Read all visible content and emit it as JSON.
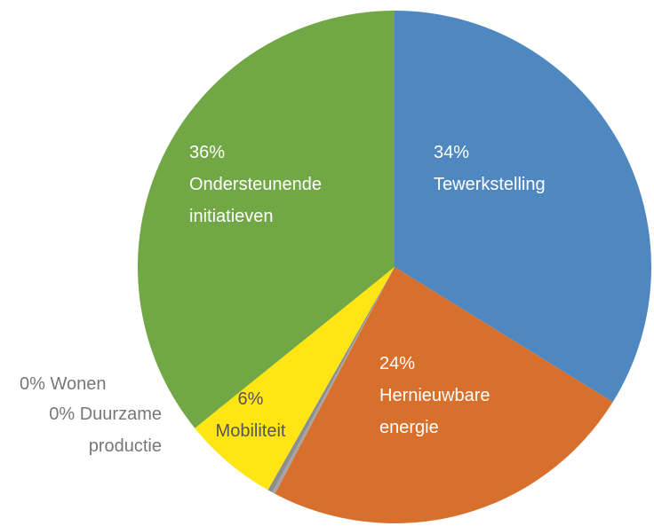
{
  "chart_data": {
    "type": "pie",
    "categories": [
      "Tewerkstelling",
      "Hernieuwbare energie",
      "Wonen",
      "Duurzame productie",
      "Mobiliteit",
      "Ondersteunende initiatieven"
    ],
    "values": [
      34,
      24,
      0.2,
      0.3,
      6,
      36
    ],
    "value_labels": [
      "34%",
      "24%",
      "0%",
      "0%",
      "6%",
      "36%"
    ],
    "colors": [
      "#4f88c0",
      "#d6702c",
      "#a5a5a5",
      "#8e8e8e",
      "#ffe513",
      "#71a845"
    ]
  }
}
